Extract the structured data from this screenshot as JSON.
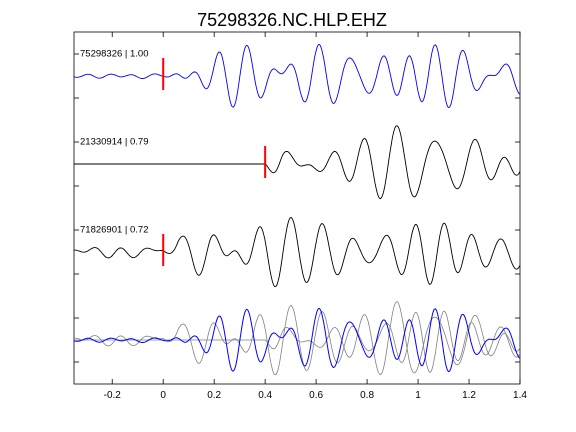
{
  "chart_data": {
    "type": "line",
    "title": "75298326.NC.HLP.EHZ",
    "xlabel": "",
    "ylabel": "",
    "xlim": [
      -0.35,
      1.4
    ],
    "xticks": [
      -0.2,
      0,
      0.2,
      0.4,
      0.6,
      0.8,
      1,
      1.2,
      1.4
    ],
    "xtick_labels": [
      "-0.2",
      "0",
      "0.2",
      "0.4",
      "0.6",
      "0.8",
      "1",
      "1.2",
      "1.4"
    ],
    "yticks": 8,
    "grid": false,
    "legend": "none",
    "colors": {
      "master": "#0000ff",
      "other": "#000000",
      "overlay_other": "#808080",
      "pick": "#ff0000",
      "axes": "#000000"
    },
    "traces": [
      {
        "label": "75298326 | 1.00",
        "color": "#0000ff",
        "noise_amp": 0.05,
        "amp": 0.85,
        "freq": 8.5,
        "pick": 0.0,
        "seed": 3
      },
      {
        "label": "21330914 | 0.79",
        "color": "#000000",
        "noise_amp": 0.0,
        "amp": 0.8,
        "freq": 7.5,
        "pick": 0.4,
        "seed": 7
      },
      {
        "label": "71826901 | 0.72",
        "color": "#000000",
        "noise_amp": 0.18,
        "amp": 0.8,
        "freq": 8.0,
        "pick": 0.0,
        "seed": 11
      }
    ],
    "overlay": {
      "label": "",
      "series": [
        "75298326",
        "21330914",
        "71826901"
      ]
    }
  }
}
